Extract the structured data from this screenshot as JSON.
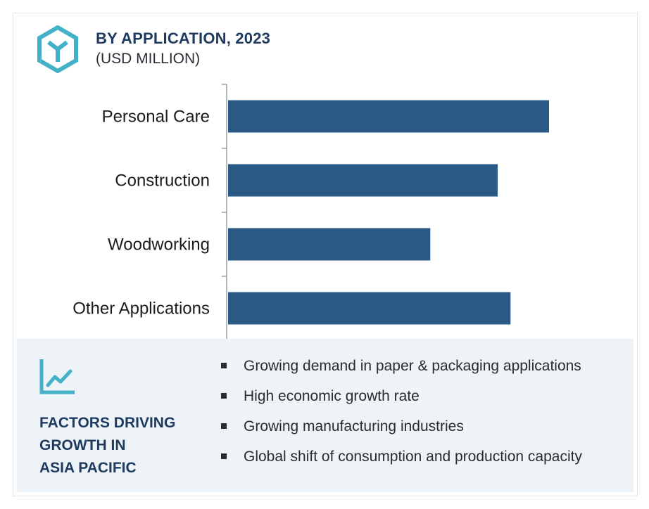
{
  "header": {
    "title": "BY APPLICATION, 2023",
    "subtitle": "(USD MILLION)"
  },
  "icons": {
    "logo": "hexagon-logo-icon",
    "factors": "line-chart-icon"
  },
  "colors": {
    "bar": "#2a5985",
    "accent": "#43b1c7",
    "title": "#1e3a5f",
    "panel": "#eef3f8"
  },
  "chart_data": {
    "type": "bar",
    "orientation": "horizontal",
    "categories": [
      "Personal Care",
      "Construction",
      "Woodworking",
      "Other Applications"
    ],
    "values": [
      100,
      84,
      63,
      88
    ],
    "xlim": [
      0,
      100
    ],
    "grid": false,
    "legend": "none"
  },
  "factors": {
    "title_lines": [
      "FACTORS DRIVING",
      "GROWTH IN",
      "ASIA PACIFIC"
    ],
    "items": [
      "Growing demand in paper & packaging applications",
      "High economic growth rate",
      "Growing manufacturing industries",
      "Global shift of consumption and production capacity"
    ]
  }
}
